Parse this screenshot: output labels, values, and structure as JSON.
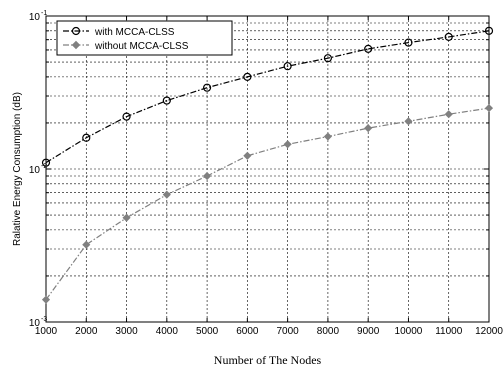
{
  "chart_data": {
    "type": "line",
    "xlabel": "Number of The Nodes",
    "ylabel": "Ralative Energy Consumption (dB)",
    "yscale": "log",
    "xlim": [
      1000,
      12000
    ],
    "ylim": [
      0.001,
      0.1
    ],
    "x_ticks": [
      1000,
      2000,
      3000,
      4000,
      5000,
      6000,
      7000,
      8000,
      9000,
      10000,
      11000,
      12000
    ],
    "y_ticks": [
      {
        "base": "10",
        "exp": "-3",
        "value": 0.001
      },
      {
        "base": "10",
        "exp": "-2",
        "value": 0.01
      },
      {
        "base": "10",
        "exp": "-1",
        "value": 0.1
      }
    ],
    "grid": true,
    "legend_position": "top-left",
    "x": [
      1000,
      2000,
      3000,
      4000,
      5000,
      6000,
      7000,
      8000,
      9000,
      10000,
      11000,
      12000
    ],
    "series": [
      {
        "name": "with MCCA-CLSS",
        "marker": "circle",
        "line": "dash-dot",
        "color": "#000000",
        "values": [
          0.011,
          0.016,
          0.022,
          0.028,
          0.034,
          0.04,
          0.047,
          0.053,
          0.061,
          0.067,
          0.073,
          0.08
        ]
      },
      {
        "name": "without MCCA-CLSS",
        "marker": "diamond",
        "line": "dash-dot",
        "color": "#808080",
        "values": [
          0.0014,
          0.0032,
          0.0048,
          0.0068,
          0.009,
          0.0122,
          0.0145,
          0.0163,
          0.0185,
          0.0205,
          0.0228,
          0.025
        ]
      }
    ]
  }
}
